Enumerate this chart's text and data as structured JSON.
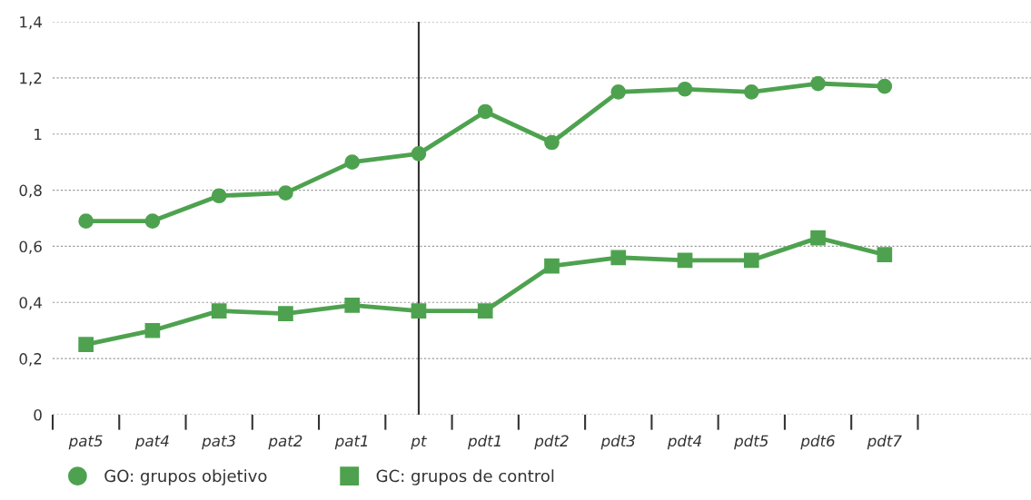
{
  "chart_data": {
    "type": "line",
    "categories": [
      "pat5",
      "pat4",
      "pat3",
      "pat2",
      "pat1",
      "pt",
      "pdt1",
      "pdt2",
      "pdt3",
      "pdt4",
      "pdt5",
      "pdt6",
      "pdt7"
    ],
    "series": [
      {
        "name": "GO: grupos objetivo",
        "color": "#4ea24f",
        "marker": "circle",
        "values": [
          0.69,
          0.69,
          0.78,
          0.79,
          0.9,
          0.93,
          1.08,
          0.97,
          1.15,
          1.16,
          1.15,
          1.18,
          1.17
        ]
      },
      {
        "name": "GC: grupos de control",
        "color": "#4ea24f",
        "marker": "square",
        "values": [
          0.25,
          0.3,
          0.37,
          0.36,
          0.39,
          0.37,
          0.37,
          0.53,
          0.56,
          0.55,
          0.55,
          0.63,
          0.57
        ]
      }
    ],
    "ylim": [
      0,
      1.4
    ],
    "yticks": [
      0,
      {
        "value": 0.2,
        "label": "0,2"
      },
      {
        "value": 0.4,
        "label": "0,4"
      },
      {
        "value": 0.6,
        "label": "0,6"
      },
      {
        "value": 0.8,
        "label": "0,8"
      },
      1,
      {
        "value": 1.2,
        "label": "1,2"
      },
      {
        "value": 1.4,
        "label": "1,4"
      }
    ],
    "grid": "y",
    "legend": "bottom left",
    "line_style": "solid",
    "ref_lines": [
      {
        "axis": "x",
        "value": "pt",
        "color": "#333333"
      }
    ]
  }
}
